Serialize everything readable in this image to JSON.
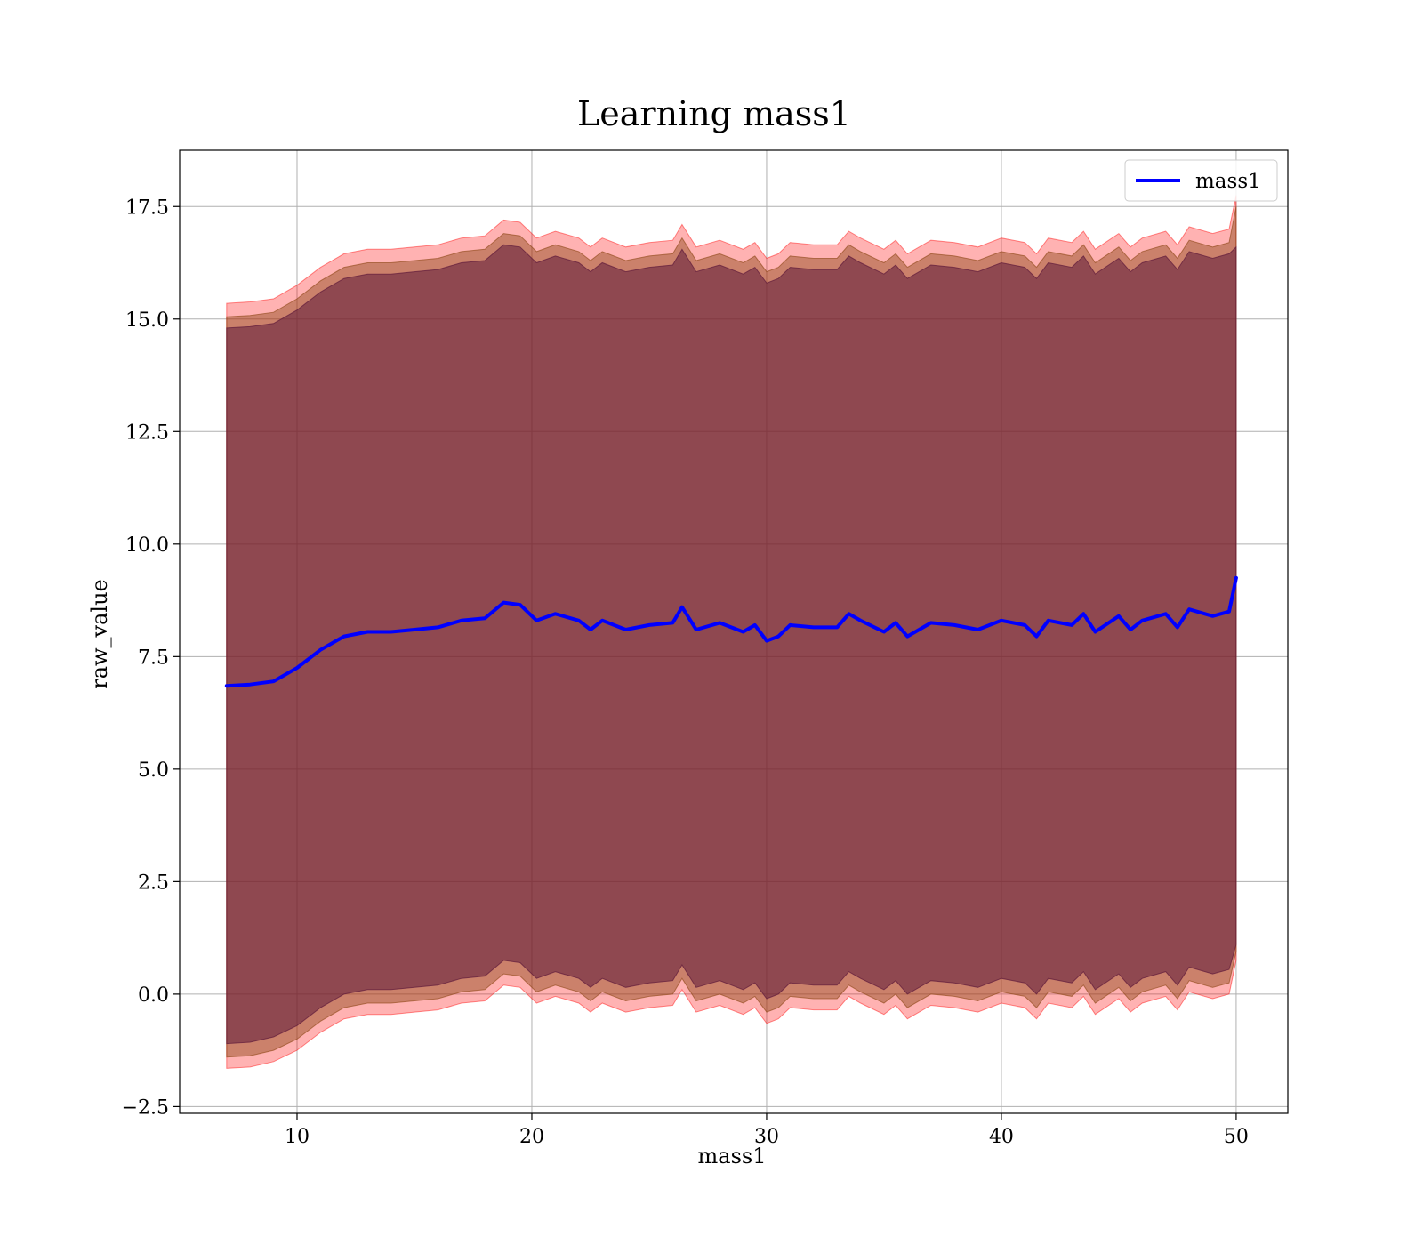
{
  "chart_data": {
    "type": "line",
    "title": "Learning mass1",
    "xlabel": "mass1",
    "ylabel": "raw_value",
    "xlim": [
      5,
      52.2
    ],
    "ylim": [
      -2.65,
      18.75
    ],
    "xticks": [
      10,
      20,
      30,
      40,
      50
    ],
    "yticks": [
      -2.5,
      0.0,
      2.5,
      5.0,
      7.5,
      10.0,
      12.5,
      15.0,
      17.5
    ],
    "ytick_labels": [
      "−2.5",
      "0.0",
      "2.5",
      "5.0",
      "7.5",
      "10.0",
      "12.5",
      "15.0",
      "17.5"
    ],
    "grid": true,
    "legend": {
      "position": "top-right",
      "entries": [
        "mass1"
      ]
    },
    "x": [
      7.0,
      8.0,
      9.0,
      10.0,
      11.0,
      12.0,
      13.0,
      14.0,
      15.0,
      16.0,
      17.0,
      18.0,
      18.8,
      19.5,
      20.2,
      21.0,
      22.0,
      22.5,
      23.0,
      24.0,
      25.0,
      26.0,
      26.4,
      27.0,
      28.0,
      29.0,
      29.5,
      30.0,
      30.5,
      31.0,
      32.0,
      33.0,
      33.5,
      34.0,
      35.0,
      35.5,
      36.0,
      37.0,
      38.0,
      39.0,
      40.0,
      41.0,
      41.5,
      42.0,
      43.0,
      43.5,
      44.0,
      45.0,
      45.5,
      46.0,
      47.0,
      47.5,
      48.0,
      49.0,
      49.7,
      50.0
    ],
    "series": [
      {
        "name": "mass1",
        "color": "#0000ff",
        "values": [
          6.85,
          6.88,
          6.95,
          7.25,
          7.65,
          7.95,
          8.05,
          8.05,
          8.1,
          8.15,
          8.3,
          8.35,
          8.7,
          8.65,
          8.3,
          8.45,
          8.3,
          8.1,
          8.3,
          8.1,
          8.2,
          8.25,
          8.6,
          8.1,
          8.25,
          8.05,
          8.2,
          7.85,
          7.95,
          8.2,
          8.15,
          8.15,
          8.45,
          8.3,
          8.05,
          8.25,
          7.95,
          8.25,
          8.2,
          8.1,
          8.3,
          8.2,
          7.95,
          8.3,
          8.2,
          8.45,
          8.05,
          8.4,
          8.1,
          8.3,
          8.45,
          8.15,
          8.55,
          8.4,
          8.5,
          9.25
        ]
      }
    ],
    "bands": [
      {
        "color": "#ff0000",
        "opacity": 0.3,
        "lower": [
          -1.65,
          -1.62,
          -1.5,
          -1.25,
          -0.85,
          -0.55,
          -0.45,
          -0.45,
          -0.4,
          -0.35,
          -0.2,
          -0.15,
          0.2,
          0.15,
          -0.2,
          -0.05,
          -0.2,
          -0.4,
          -0.2,
          -0.4,
          -0.3,
          -0.25,
          0.1,
          -0.4,
          -0.25,
          -0.45,
          -0.3,
          -0.65,
          -0.55,
          -0.3,
          -0.35,
          -0.35,
          -0.05,
          -0.2,
          -0.45,
          -0.25,
          -0.55,
          -0.25,
          -0.3,
          -0.4,
          -0.2,
          -0.3,
          -0.55,
          -0.2,
          -0.3,
          -0.05,
          -0.45,
          -0.1,
          -0.4,
          -0.2,
          -0.05,
          -0.35,
          0.05,
          -0.1,
          0.0,
          0.75
        ],
        "upper": [
          15.35,
          15.38,
          15.45,
          15.75,
          16.15,
          16.45,
          16.55,
          16.55,
          16.6,
          16.65,
          16.8,
          16.85,
          17.2,
          17.15,
          16.8,
          16.95,
          16.8,
          16.6,
          16.8,
          16.6,
          16.7,
          16.75,
          17.1,
          16.6,
          16.75,
          16.55,
          16.7,
          16.35,
          16.45,
          16.7,
          16.65,
          16.65,
          16.95,
          16.8,
          16.55,
          16.75,
          16.45,
          16.75,
          16.7,
          16.6,
          16.8,
          16.7,
          16.45,
          16.8,
          16.7,
          16.95,
          16.55,
          16.9,
          16.6,
          16.8,
          16.95,
          16.65,
          17.05,
          16.9,
          17.0,
          17.75
        ]
      },
      {
        "color": "#8b4513",
        "opacity": 0.45,
        "lower": [
          -1.4,
          -1.37,
          -1.25,
          -1.0,
          -0.6,
          -0.3,
          -0.2,
          -0.2,
          -0.15,
          -0.1,
          0.05,
          0.1,
          0.45,
          0.4,
          0.05,
          0.2,
          0.05,
          -0.15,
          0.05,
          -0.15,
          -0.05,
          0.0,
          0.35,
          -0.15,
          0.0,
          -0.2,
          -0.05,
          -0.4,
          -0.3,
          -0.05,
          -0.1,
          -0.1,
          0.2,
          0.05,
          -0.2,
          0.0,
          -0.3,
          0.0,
          -0.05,
          -0.15,
          0.05,
          -0.05,
          -0.3,
          0.05,
          -0.05,
          0.2,
          -0.2,
          0.15,
          -0.15,
          0.05,
          0.2,
          -0.1,
          0.3,
          0.15,
          0.25,
          0.95
        ],
        "upper": [
          15.05,
          15.08,
          15.15,
          15.45,
          15.85,
          16.15,
          16.25,
          16.25,
          16.3,
          16.35,
          16.5,
          16.55,
          16.9,
          16.85,
          16.5,
          16.65,
          16.5,
          16.3,
          16.5,
          16.3,
          16.4,
          16.45,
          16.8,
          16.3,
          16.45,
          16.25,
          16.4,
          16.05,
          16.15,
          16.4,
          16.35,
          16.35,
          16.65,
          16.5,
          16.25,
          16.45,
          16.15,
          16.45,
          16.4,
          16.3,
          16.5,
          16.4,
          16.15,
          16.5,
          16.4,
          16.65,
          16.25,
          16.6,
          16.3,
          16.5,
          16.65,
          16.35,
          16.75,
          16.6,
          16.7,
          17.5
        ]
      },
      {
        "color": "#5e1a3b",
        "opacity": 0.55,
        "lower": [
          -1.1,
          -1.07,
          -0.95,
          -0.7,
          -0.3,
          0.0,
          0.1,
          0.1,
          0.15,
          0.2,
          0.35,
          0.4,
          0.75,
          0.7,
          0.35,
          0.5,
          0.35,
          0.15,
          0.35,
          0.15,
          0.25,
          0.3,
          0.65,
          0.15,
          0.3,
          0.1,
          0.25,
          -0.1,
          0.0,
          0.25,
          0.2,
          0.2,
          0.5,
          0.35,
          0.1,
          0.3,
          0.0,
          0.3,
          0.25,
          0.15,
          0.35,
          0.25,
          0.0,
          0.35,
          0.25,
          0.5,
          0.1,
          0.45,
          0.15,
          0.35,
          0.5,
          0.2,
          0.6,
          0.45,
          0.55,
          1.1
        ],
        "upper": [
          14.8,
          14.83,
          14.9,
          15.2,
          15.6,
          15.9,
          16.0,
          16.0,
          16.05,
          16.1,
          16.25,
          16.3,
          16.65,
          16.6,
          16.25,
          16.4,
          16.25,
          16.05,
          16.25,
          16.05,
          16.15,
          16.2,
          16.55,
          16.05,
          16.2,
          16.0,
          16.15,
          15.8,
          15.9,
          16.15,
          16.1,
          16.1,
          16.4,
          16.25,
          16.0,
          16.2,
          15.9,
          16.2,
          16.15,
          16.05,
          16.25,
          16.15,
          15.9,
          16.25,
          16.15,
          16.4,
          16.0,
          16.35,
          16.05,
          16.25,
          16.4,
          16.1,
          16.5,
          16.35,
          16.45,
          16.6
        ]
      }
    ]
  }
}
